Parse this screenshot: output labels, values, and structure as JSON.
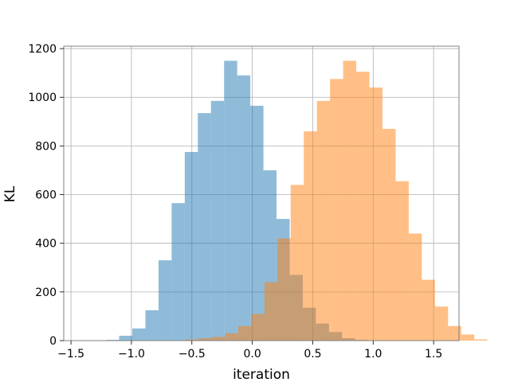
{
  "chart_data": {
    "type": "histogram",
    "xlabel": "iteration",
    "ylabel": "KL",
    "xlim": [
      -1.56,
      1.71
    ],
    "ylim": [
      0,
      1210
    ],
    "xticks": [
      -1.5,
      -1.0,
      -0.5,
      0.0,
      0.5,
      1.0,
      1.5
    ],
    "xtick_labels": [
      "−1.5",
      "−1.0",
      "−0.5",
      "0.0",
      "0.5",
      "1.0",
      "1.5"
    ],
    "yticks": [
      0,
      200,
      400,
      600,
      800,
      1000,
      1200
    ],
    "ytick_labels": [
      "0",
      "200",
      "400",
      "600",
      "800",
      "1000",
      "1200"
    ],
    "grid": true,
    "series": [
      {
        "color": "#1f77b4",
        "opacity": 0.5,
        "bin_start": -1.21,
        "bin_width": 0.1085,
        "counts": [
          3,
          20,
          50,
          125,
          330,
          565,
          775,
          935,
          985,
          1150,
          1090,
          965,
          700,
          500,
          270,
          135,
          70,
          35,
          10,
          3,
          1,
          0,
          0,
          0,
          0,
          0,
          0,
          0,
          0,
          0
        ]
      },
      {
        "color": "#ff7f0e",
        "opacity": 0.5,
        "bin_start": -1.31,
        "bin_width": 0.1085,
        "counts": [
          0,
          0,
          0,
          0,
          0,
          0,
          1,
          5,
          10,
          15,
          30,
          60,
          110,
          240,
          420,
          640,
          860,
          985,
          1075,
          1150,
          1105,
          1040,
          870,
          655,
          440,
          250,
          140,
          60,
          25,
          5
        ]
      }
    ]
  }
}
